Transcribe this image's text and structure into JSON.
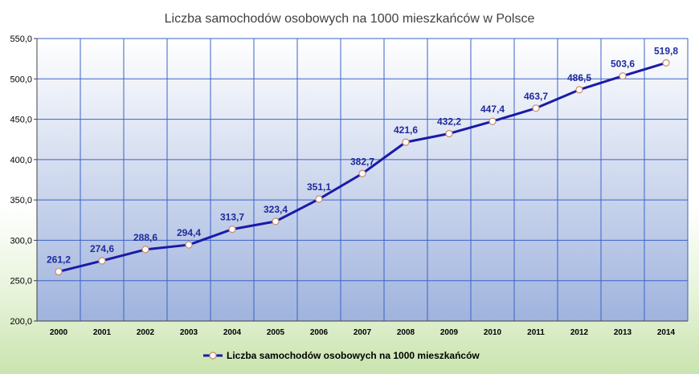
{
  "chart_data": {
    "type": "line",
    "title": "Liczba samochodów osobowych na 1000 mieszkańców w Polsce",
    "categories": [
      "2000",
      "2001",
      "2002",
      "2003",
      "2004",
      "2005",
      "2006",
      "2007",
      "2008",
      "2009",
      "2010",
      "2011",
      "2012",
      "2013",
      "2014"
    ],
    "series": [
      {
        "name": "Liczba samochodów osobowych na 1000 mieszkańców",
        "values": [
          261.2,
          274.6,
          288.6,
          294.4,
          313.7,
          323.4,
          351.1,
          382.7,
          421.6,
          432.2,
          447.4,
          463.7,
          486.5,
          503.6,
          519.8
        ],
        "labels": [
          "261,2",
          "274,6",
          "288,6",
          "294,4",
          "313,7",
          "323,4",
          "351,1",
          "382,7",
          "421,6",
          "432,2",
          "447,4",
          "463,7",
          "486,5",
          "503,6",
          "519,8"
        ],
        "color": "#1a1aa8",
        "marker_fill": "#ffffff",
        "marker_stroke": "#c98a6a"
      }
    ],
    "ylim": [
      200,
      550
    ],
    "yticks": [
      200,
      250,
      300,
      350,
      400,
      450,
      500,
      550
    ],
    "ytick_labels": [
      "200,0",
      "250,0",
      "300,0",
      "350,0",
      "400,0",
      "450,0",
      "500,0",
      "550,0"
    ],
    "xlabel": "",
    "ylabel": "",
    "grid": true,
    "legend_position": "bottom",
    "colors": {
      "plot_top": "#ffffff",
      "plot_bottom": "#9fb3dd",
      "grid": "#3b62c8",
      "title": "#404040",
      "data_label": "#1f2a9c"
    }
  }
}
